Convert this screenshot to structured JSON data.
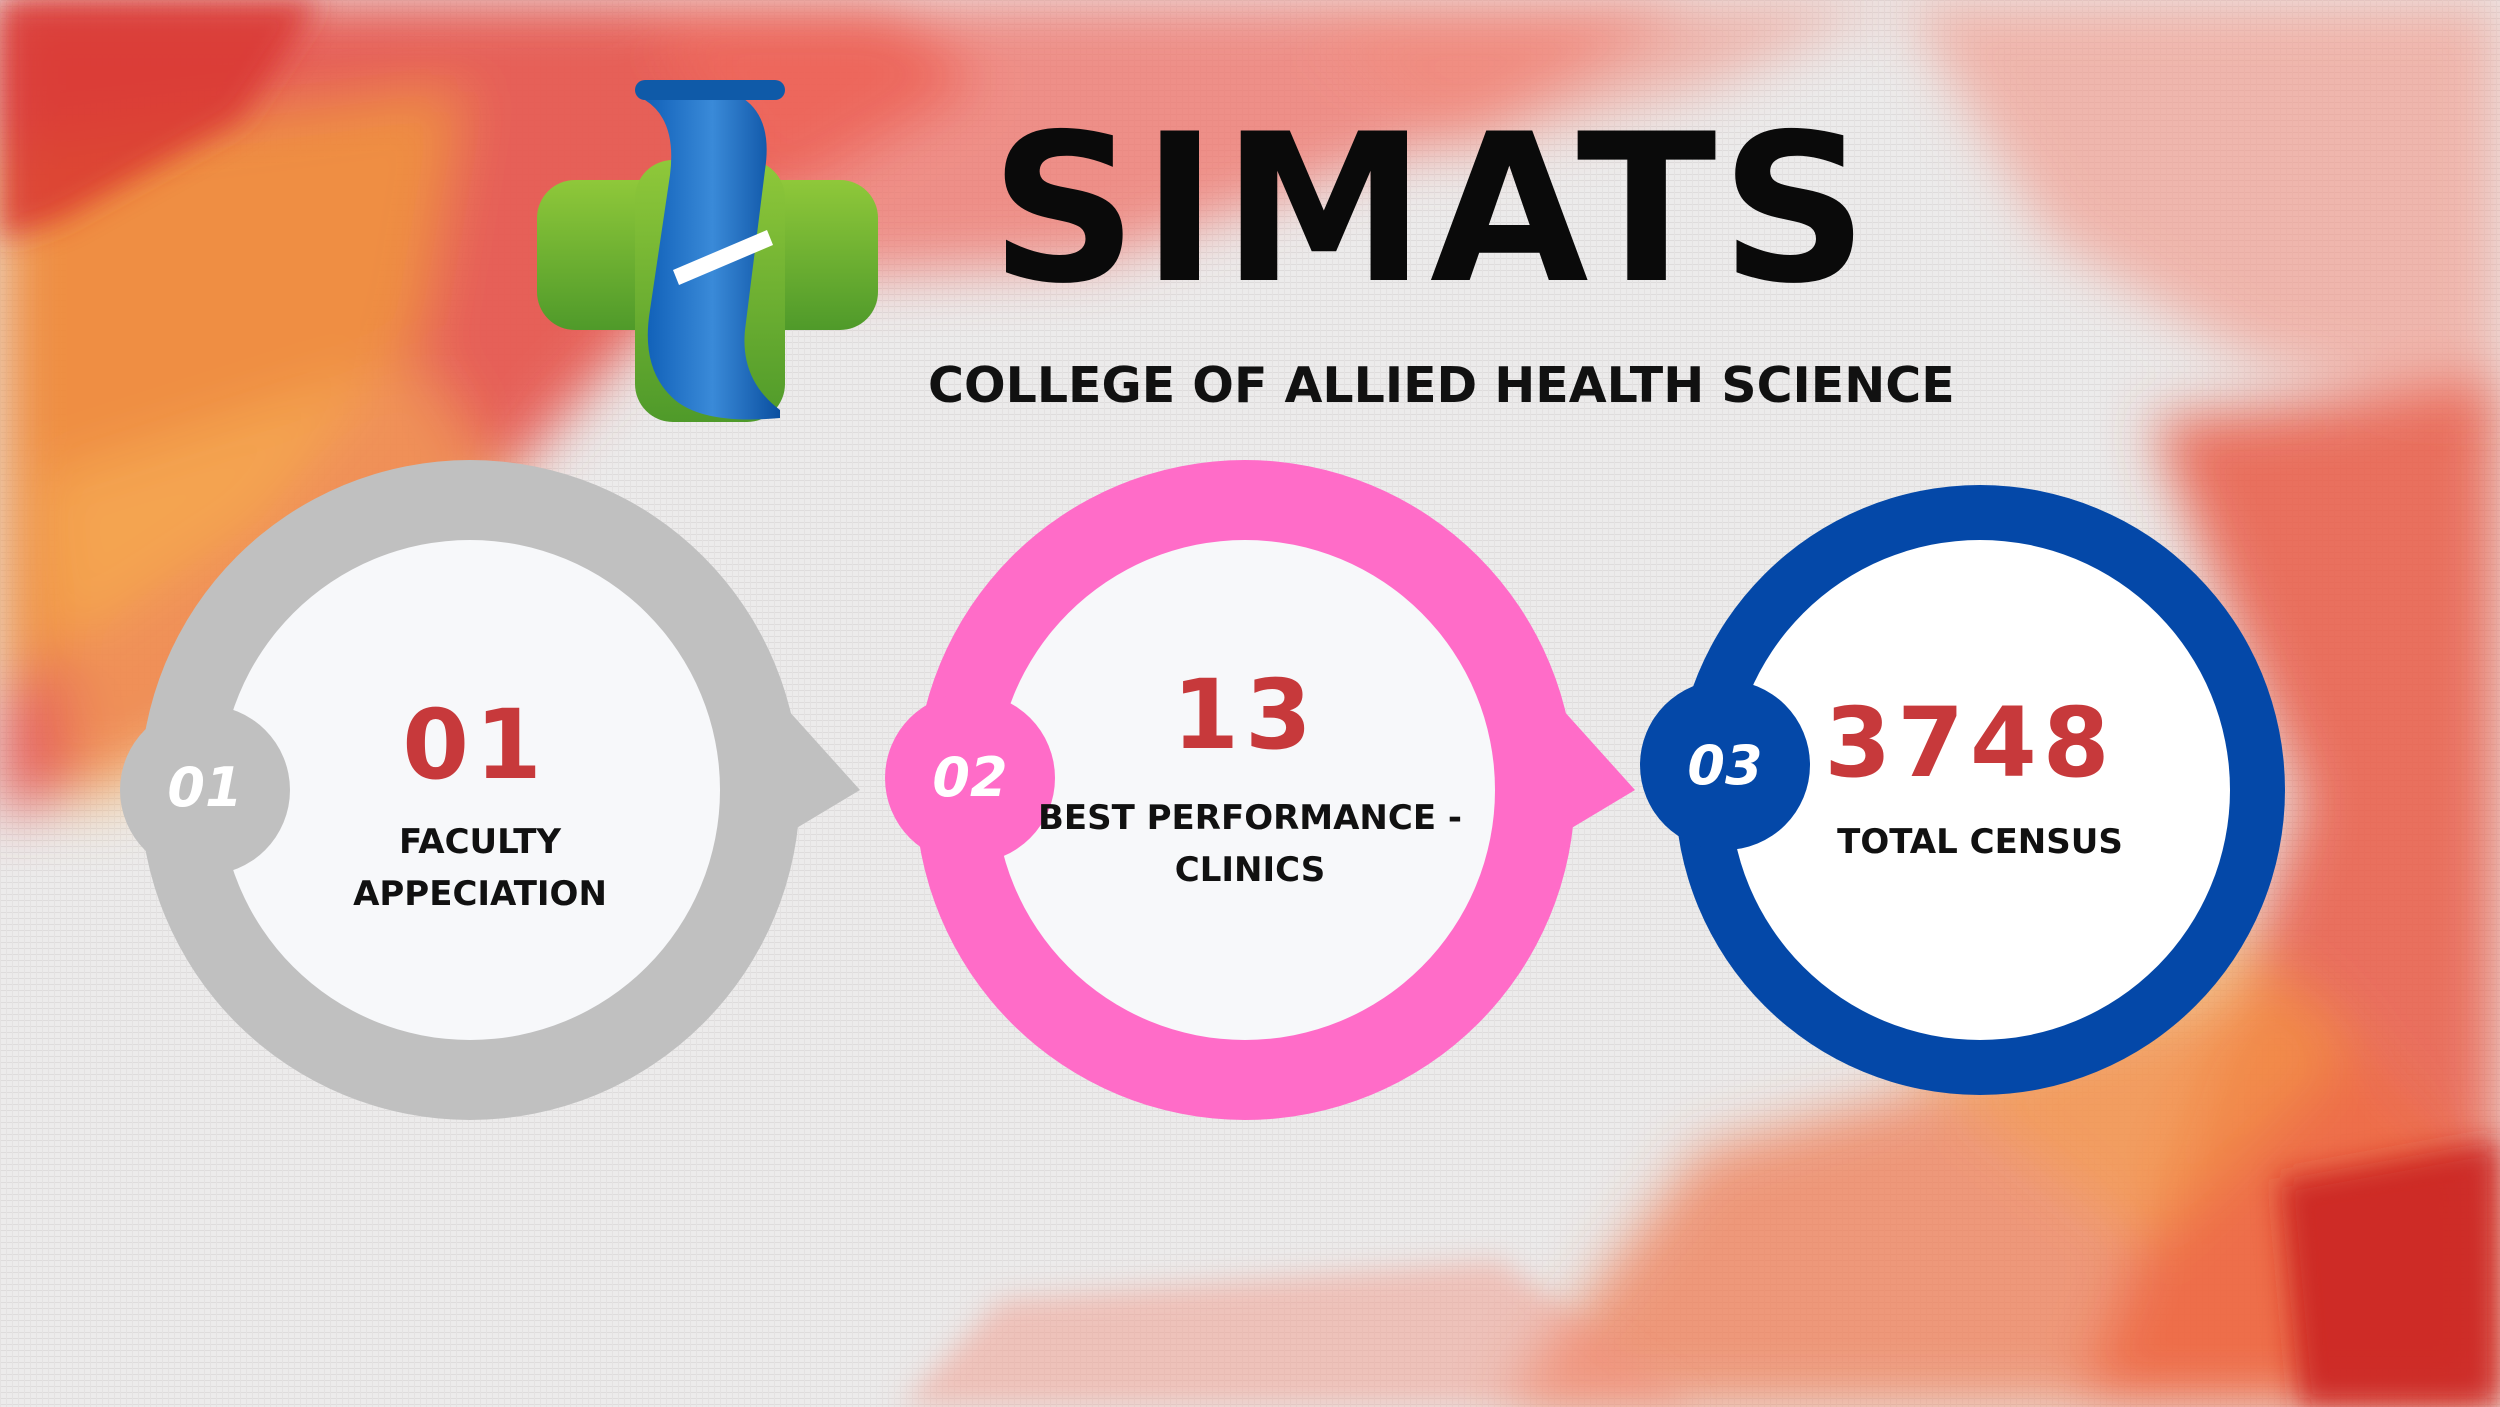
{
  "header": {
    "brand": "SIMATS",
    "subtitle": "COLLEGE OF ALLIED HEALTH SCIENCE",
    "logo_icon": "medical-cross-logo-icon"
  },
  "colors": {
    "brush_red": "#e0483f",
    "brush_orange": "#f39a2c",
    "ring_1": "#c0c0c0",
    "ring_2": "#ff6cc8",
    "ring_3": "#0448a8",
    "number_color": "#c7393b"
  },
  "stats": [
    {
      "badge": "01",
      "value": "01",
      "label": "FACULTY APPECIATION"
    },
    {
      "badge": "02",
      "value": "13",
      "label": "BEST PERFORMANCE -\nCLINICS"
    },
    {
      "badge": "03",
      "value": "3748",
      "label": "TOTAL CENSUS"
    }
  ]
}
